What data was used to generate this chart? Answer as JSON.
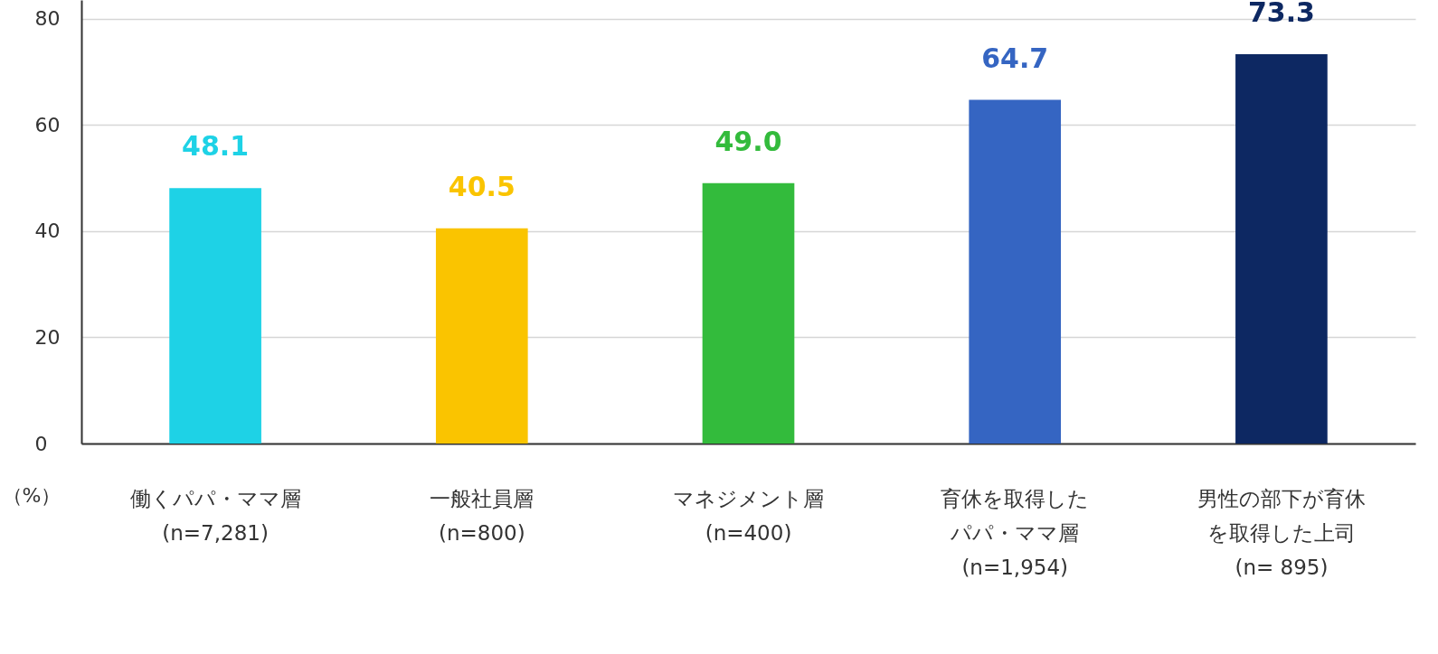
{
  "chart_data": {
    "type": "bar",
    "ylabel": "（%）",
    "categories": [
      "働くパパ・ママ層\n(n=7,281)",
      "一般社員層\n(n=800)",
      "マネジメント層\n(n=400)",
      "育休を取得したパパ・ママ層\n(n=1,954)",
      "男性の部下が育休を取得した上司\n(n= 895)"
    ],
    "values": [
      48.1,
      40.5,
      49.0,
      64.7,
      73.3
    ],
    "value_labels": [
      "48.1",
      "40.5",
      "49.0",
      "64.7",
      "73.3"
    ],
    "colors": [
      "#1ed2e6",
      "#fac400",
      "#33bb3c",
      "#3565c2",
      "#0d2862"
    ],
    "ylim": [
      0,
      83.5
    ],
    "yticks": [
      0,
      20,
      40,
      60,
      80
    ],
    "grid": "y"
  }
}
